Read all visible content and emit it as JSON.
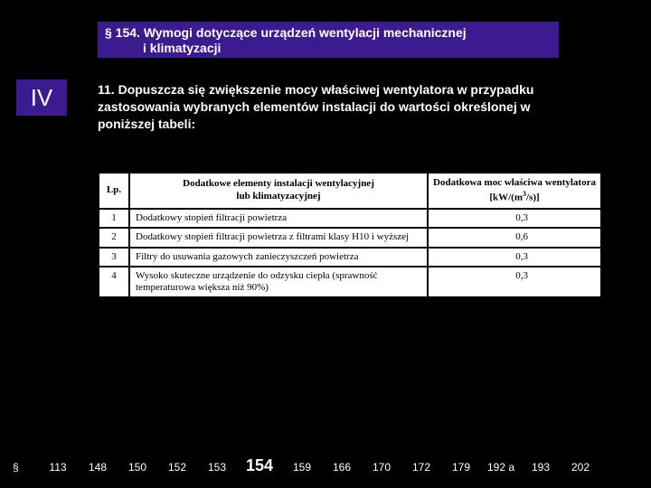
{
  "header": {
    "line1": "§ 154.  Wymogi dotyczące urządzeń wentylacji mechanicznej",
    "line2": "i klimatyzacji"
  },
  "chapter": "IV",
  "body": "11. Dopuszcza się zwiększenie mocy właściwej wentylatora w przypadku zastosowania wybranych elementów instalacji do wartości określonej w poniższej tabeli:",
  "table": {
    "columns": {
      "lp": "Lp.",
      "desc_l1": "Dodatkowe elementy instalacji wentylacyjnej",
      "desc_l2": "lub klimatyzacyjnej",
      "val_l1": "Dodatkowa moc właściwa wentylatora",
      "val_l2_pre": "[kW/(m",
      "val_l2_sup": "3",
      "val_l2_post": "/s)]"
    },
    "rows": [
      {
        "lp": "1",
        "desc": "Dodatkowy stopień filtracji powietrza",
        "val": "0,3"
      },
      {
        "lp": "2",
        "desc": "Dodatkowy stopień filtracji powietrza z filtrami klasy H10 i wyższej",
        "val": "0,6"
      },
      {
        "lp": "3",
        "desc": "Filtry do usuwania gazowych zanieczyszczeń powietrza",
        "val": "0,3"
      },
      {
        "lp": "4",
        "desc": "Wysoko skuteczne urządzenie do odzysku ciepła (sprawność temperaturowa większa niż 90%)",
        "val": "0,3"
      }
    ]
  },
  "footer": {
    "symbol": "§",
    "items": [
      "113",
      "148",
      "150",
      "152",
      "153",
      "154",
      "159",
      "166",
      "170",
      "172",
      "179",
      "192 a",
      "193",
      "202"
    ],
    "current": "154"
  },
  "colors": {
    "page_bg": "#000000",
    "banner_bg": "#3b1b8f",
    "text_light": "#ffffff",
    "table_bg": "#ffffff",
    "table_border": "#000000"
  }
}
